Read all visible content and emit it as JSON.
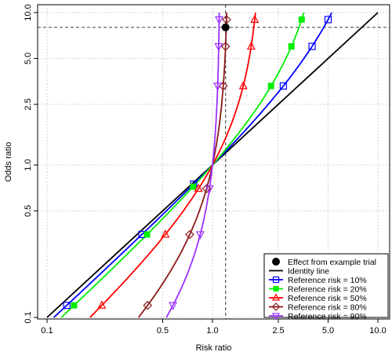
{
  "colors": {
    "identity": "#000000",
    "ref10": "#0000ff",
    "ref20": "#00ee00",
    "ref50": "#ff0000",
    "ref80": "#8b1a1a",
    "ref90": "#9b30ff",
    "grid": "#d3d3d3",
    "refline": "#555555"
  },
  "chart_data": {
    "type": "line",
    "xlabel": "Risk ratio",
    "ylabel": "Odds ratio",
    "x_scale": "log",
    "y_scale": "log",
    "xlim": [
      0.1,
      10
    ],
    "ylim": [
      0.1,
      10
    ],
    "x_ticks": [
      0.1,
      0.5,
      1,
      2.5,
      5,
      10
    ],
    "x_tick_labels": [
      "0.1",
      "0.5",
      "1.0",
      "2.5",
      "5.0",
      "10.0"
    ],
    "y_ticks": [
      0.1,
      0.5,
      1,
      2.5,
      5,
      10
    ],
    "y_tick_labels": [
      "0.1",
      "0.5",
      "1.0",
      "2.5",
      "5.0",
      "10.0"
    ],
    "grid": true,
    "legend_position": "bottom-right",
    "example_trial": {
      "label": "Effect from example trial",
      "rr": 1.2,
      "or": 8
    },
    "identity_line": {
      "label": "Identity line"
    },
    "series": [
      {
        "name": "Reference risk = 10%",
        "p0": 0.1,
        "color_key": "ref10",
        "marker": "square-open",
        "marker_or": [
          0.12,
          0.35,
          0.75,
          3.3,
          6,
          9
        ]
      },
      {
        "name": "Reference risk = 20%",
        "p0": 0.2,
        "color_key": "ref20",
        "marker": "square-filled",
        "marker_or": [
          0.12,
          0.35,
          0.72,
          3.3,
          6,
          9
        ]
      },
      {
        "name": "Reference risk = 50%",
        "p0": 0.5,
        "color_key": "ref50",
        "marker": "triangle-up",
        "marker_or": [
          0.12,
          0.35,
          0.7,
          3.3,
          6,
          9
        ]
      },
      {
        "name": "Reference risk = 80%",
        "p0": 0.8,
        "color_key": "ref80",
        "marker": "diamond",
        "marker_or": [
          0.12,
          0.35,
          0.7,
          3.3,
          6,
          9
        ]
      },
      {
        "name": "Reference risk = 90%",
        "p0": 0.9,
        "color_key": "ref90",
        "marker": "triangle-down",
        "marker_or": [
          0.12,
          0.35,
          0.7,
          3.3,
          6,
          9
        ]
      }
    ]
  }
}
